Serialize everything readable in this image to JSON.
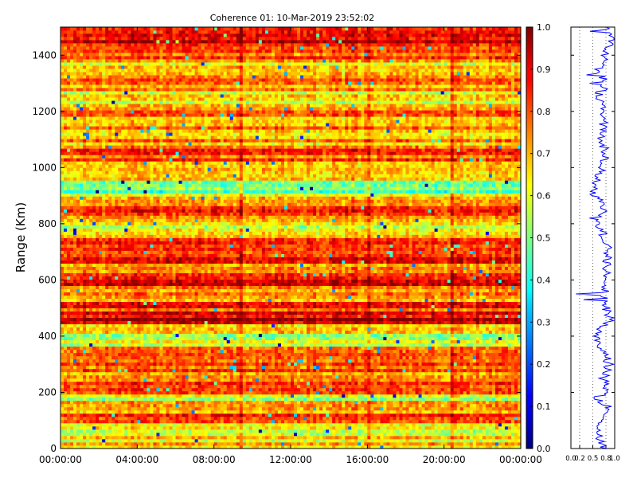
{
  "chart_data": [
    {
      "type": "heatmap",
      "title": "Coherence 01: 10-Mar-2019 23:52:02",
      "xlabel": "",
      "ylabel": "Range (Km)",
      "x_ticks": [
        "00:00:00",
        "04:00:00",
        "08:00:00",
        "12:00:00",
        "16:00:00",
        "20:00:00",
        "00:00:00"
      ],
      "x_range_hours": [
        0,
        24
      ],
      "ylim": [
        0,
        1500
      ],
      "y_ticks": [
        "0",
        "200",
        "400",
        "600",
        "800",
        "1000",
        "1200",
        "1400"
      ],
      "colorbar": {
        "colormap": "jet",
        "range": [
          0.0,
          1.0
        ],
        "ticks": [
          "0.0",
          "0.1",
          "0.2",
          "0.3",
          "0.4",
          "0.5",
          "0.6",
          "0.7",
          "0.8",
          "0.9",
          "1.0"
        ]
      },
      "range_profile_mean_coherence": [
        {
          "range_km": 0,
          "value": 0.75
        },
        {
          "range_km": 50,
          "value": 0.65
        },
        {
          "range_km": 100,
          "value": 0.72
        },
        {
          "range_km": 150,
          "value": 0.82
        },
        {
          "range_km": 180,
          "value": 0.58
        },
        {
          "range_km": 200,
          "value": 0.8
        },
        {
          "range_km": 250,
          "value": 0.74
        },
        {
          "range_km": 300,
          "value": 0.88
        },
        {
          "range_km": 350,
          "value": 0.72
        },
        {
          "range_km": 380,
          "value": 0.6
        },
        {
          "range_km": 410,
          "value": 0.55
        },
        {
          "range_km": 460,
          "value": 0.92
        },
        {
          "range_km": 500,
          "value": 0.8
        },
        {
          "range_km": 550,
          "value": 0.76
        },
        {
          "range_km": 600,
          "value": 0.85
        },
        {
          "range_km": 650,
          "value": 0.8
        },
        {
          "range_km": 700,
          "value": 0.86
        },
        {
          "range_km": 750,
          "value": 0.78
        },
        {
          "range_km": 790,
          "value": 0.62
        },
        {
          "range_km": 850,
          "value": 0.8
        },
        {
          "range_km": 915,
          "value": 0.5
        },
        {
          "range_km": 945,
          "value": 0.58
        },
        {
          "range_km": 1000,
          "value": 0.74
        },
        {
          "range_km": 1050,
          "value": 0.8
        },
        {
          "range_km": 1100,
          "value": 0.7
        },
        {
          "range_km": 1150,
          "value": 0.72
        },
        {
          "range_km": 1200,
          "value": 0.78
        },
        {
          "range_km": 1250,
          "value": 0.6
        },
        {
          "range_km": 1300,
          "value": 0.82
        },
        {
          "range_km": 1350,
          "value": 0.62
        },
        {
          "range_km": 1400,
          "value": 0.8
        },
        {
          "range_km": 1450,
          "value": 0.9
        },
        {
          "range_km": 1500,
          "value": 0.85
        }
      ]
    },
    {
      "type": "line",
      "title": "",
      "xlabel": "",
      "ylabel": "",
      "xlim": [
        0.0,
        1.0
      ],
      "x_ticks": [
        "0.0",
        "0.2",
        "0.5",
        "0.8",
        "1.0"
      ],
      "x_tick_values": [
        0.0,
        0.2,
        0.5,
        0.8,
        1.0
      ],
      "ylim": [
        0,
        1500
      ],
      "grid": "dotted vertical"
    }
  ],
  "colors": {
    "axis": "#000000",
    "profile_line": "#0000ff",
    "background": "#ffffff"
  }
}
